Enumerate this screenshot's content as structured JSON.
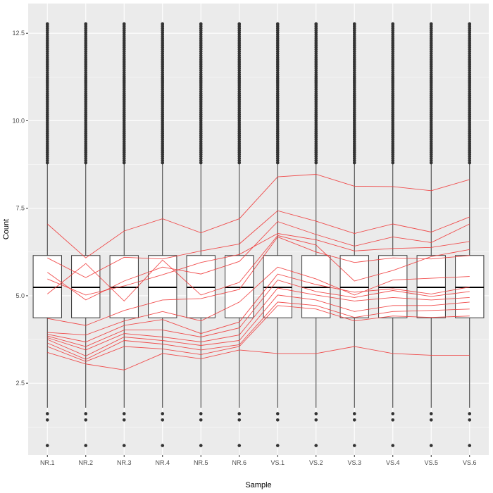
{
  "chart_data": {
    "type": "boxplot",
    "title": "",
    "xlabel": "Sample",
    "ylabel": "Count",
    "ylim": [
      0.45,
      13.35
    ],
    "yticks": [
      2.5,
      5.0,
      7.5,
      10.0,
      12.5
    ],
    "ytick_labels": [
      "2.5",
      "5.0",
      "7.5",
      "10.0",
      "12.5"
    ],
    "grid": true,
    "categories": [
      "NR.1",
      "NR.2",
      "NR.3",
      "NR.4",
      "NR.5",
      "NR.6",
      "VS.1",
      "VS.2",
      "VS.3",
      "VS.4",
      "VS.5",
      "VS.6"
    ],
    "box": {
      "q1": 4.37,
      "median": 5.24,
      "q3": 6.15,
      "whisker_low": 1.8,
      "whisker_high": 8.8
    },
    "outliers": {
      "low": [
        1.63,
        1.45,
        0.72
      ],
      "high_min": 8.8,
      "high_max": 12.77
    },
    "lines": [
      [
        7.05,
        6.08,
        6.85,
        7.2,
        6.8,
        7.2,
        8.4,
        8.47,
        8.13,
        8.12,
        8.0,
        8.32
      ],
      [
        6.08,
        5.52,
        6.1,
        6.05,
        6.28,
        6.48,
        7.43,
        7.13,
        6.78,
        7.05,
        6.82,
        7.25
      ],
      [
        5.67,
        4.88,
        5.42,
        5.82,
        5.62,
        5.98,
        7.12,
        6.75,
        6.42,
        6.68,
        6.52,
        7.05
      ],
      [
        5.48,
        5.02,
        5.28,
        5.6,
        5.95,
        6.18,
        6.78,
        6.6,
        6.28,
        6.35,
        6.38,
        6.55
      ],
      [
        5.05,
        5.92,
        4.85,
        6.02,
        5.02,
        5.38,
        6.72,
        6.45,
        5.42,
        5.72,
        6.12,
        6.32
      ],
      [
        4.35,
        4.15,
        4.58,
        4.88,
        4.92,
        5.18,
        6.68,
        6.25,
        5.95,
        6.08,
        6.05,
        6.15
      ],
      [
        3.95,
        3.88,
        4.28,
        4.55,
        4.28,
        4.82,
        5.82,
        5.48,
        5.02,
        5.45,
        5.5,
        5.55
      ],
      [
        3.9,
        3.68,
        4.15,
        4.32,
        3.92,
        4.25,
        5.62,
        5.32,
        5.1,
        5.2,
        5.05,
        5.25
      ],
      [
        3.85,
        3.55,
        4.02,
        4.02,
        3.82,
        4.08,
        5.45,
        5.12,
        4.95,
        5.15,
        4.98,
        5.12
      ],
      [
        3.8,
        3.45,
        3.92,
        3.82,
        3.68,
        3.88,
        5.22,
        5.02,
        4.85,
        4.95,
        4.88,
        4.95
      ],
      [
        3.75,
        3.28,
        3.82,
        3.72,
        3.58,
        3.72,
        5.02,
        4.88,
        4.55,
        4.72,
        4.72,
        4.82
      ],
      [
        3.65,
        3.18,
        3.72,
        3.62,
        3.45,
        3.6,
        4.82,
        4.72,
        4.38,
        4.55,
        4.58,
        4.62
      ],
      [
        3.55,
        3.12,
        3.55,
        3.48,
        3.32,
        3.55,
        4.72,
        4.62,
        4.28,
        4.42,
        4.38,
        4.42
      ],
      [
        3.38,
        3.05,
        2.88,
        3.35,
        3.2,
        3.45,
        3.35,
        3.35,
        3.55,
        3.35,
        3.3,
        3.3
      ]
    ],
    "colors": {
      "panel": "#ebebeb",
      "grid": "#ffffff",
      "box_fill": "#ffffff",
      "box_stroke": "#333333",
      "outlier": "#333333",
      "lines": "#f03b3b"
    }
  }
}
